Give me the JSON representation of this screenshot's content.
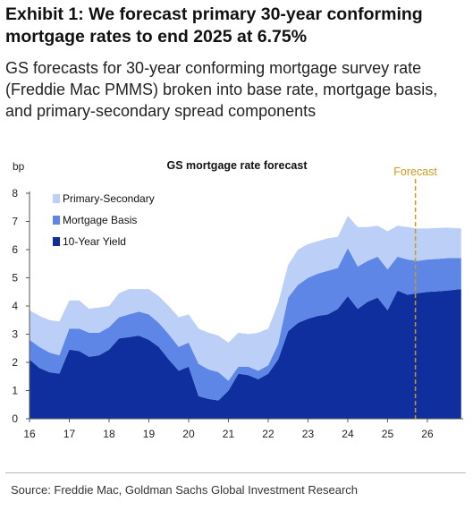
{
  "header": {
    "title": "Exhibit 1: We forecast primary 30-year conforming mortgage rates to end 2025 at 6.75%",
    "subtitle": "GS forecasts for 30-year conforming mortgage survey rate (Freddie Mac PMMS) broken into base rate, mortgage basis, and primary-secondary spread components"
  },
  "footer": {
    "source": "Source: Freddie Mac, Goldman Sachs Global Investment Research"
  },
  "colors": {
    "yield": "#0f2f9e",
    "basis": "#5d86e6",
    "spread": "#bccff6",
    "forecast_line": "#c99a1c"
  },
  "chart_data": {
    "type": "area",
    "stacked": true,
    "title": "GS mortgage rate forecast",
    "ylabel": "bp",
    "xlabel": "",
    "ylim": [
      0,
      8
    ],
    "yticks": [
      0,
      1,
      2,
      3,
      4,
      5,
      6,
      7,
      8
    ],
    "xlim": [
      16,
      26.9
    ],
    "xticks": [
      16,
      17,
      18,
      19,
      20,
      21,
      22,
      23,
      24,
      25,
      26
    ],
    "xtick_labels": [
      "16",
      "17",
      "18",
      "19",
      "20",
      "21",
      "22",
      "23",
      "24",
      "25",
      "26"
    ],
    "grid": false,
    "legend": "top-left",
    "annotations": [
      {
        "text": "Forecast",
        "x": 25.7
      }
    ],
    "x": [
      16,
      16.25,
      16.5,
      16.75,
      17,
      17.25,
      17.5,
      17.75,
      18,
      18.25,
      18.5,
      18.75,
      19,
      19.25,
      19.5,
      19.75,
      20,
      20.25,
      20.5,
      20.75,
      21,
      21.25,
      21.5,
      21.75,
      22,
      22.25,
      22.5,
      22.75,
      23,
      23.25,
      23.5,
      23.75,
      24,
      24.25,
      24.5,
      24.75,
      25,
      25.25,
      25.5,
      25.75,
      26,
      26.25,
      26.5,
      26.85
    ],
    "series": [
      {
        "name": "10-Year Yield",
        "values": [
          2.1,
          1.8,
          1.65,
          1.6,
          2.45,
          2.4,
          2.2,
          2.25,
          2.45,
          2.85,
          2.9,
          2.95,
          2.8,
          2.55,
          2.1,
          1.7,
          1.85,
          0.8,
          0.7,
          0.65,
          1.0,
          1.6,
          1.55,
          1.4,
          1.6,
          2.1,
          3.1,
          3.4,
          3.55,
          3.65,
          3.7,
          3.9,
          4.35,
          3.9,
          4.15,
          4.3,
          3.85,
          4.55,
          4.4,
          4.45,
          4.5,
          4.52,
          4.55,
          4.6
        ]
      },
      {
        "name": "Mortgage Basis",
        "values": [
          0.7,
          0.75,
          0.7,
          0.65,
          0.75,
          0.8,
          0.85,
          0.8,
          0.8,
          0.75,
          0.8,
          0.85,
          0.9,
          0.85,
          0.9,
          0.85,
          0.85,
          1.15,
          1.05,
          1.0,
          0.35,
          0.25,
          0.3,
          0.3,
          0.3,
          0.55,
          1.2,
          1.35,
          1.45,
          1.5,
          1.55,
          1.45,
          1.7,
          1.5,
          1.45,
          1.45,
          1.45,
          1.2,
          1.25,
          1.15,
          1.15,
          1.15,
          1.15,
          1.1
        ]
      },
      {
        "name": "Primary-Secondary",
        "values": [
          1.05,
          1.1,
          1.15,
          1.2,
          1.0,
          1.0,
          0.85,
          0.9,
          0.75,
          0.85,
          0.9,
          0.8,
          0.9,
          0.95,
          1.0,
          1.05,
          1.0,
          1.25,
          1.3,
          1.3,
          1.35,
          1.2,
          1.15,
          1.35,
          1.3,
          1.45,
          1.15,
          1.25,
          1.2,
          1.15,
          1.15,
          1.1,
          1.15,
          1.4,
          1.2,
          1.1,
          1.35,
          1.1,
          1.15,
          1.15,
          1.1,
          1.1,
          1.08,
          1.05
        ]
      }
    ]
  }
}
